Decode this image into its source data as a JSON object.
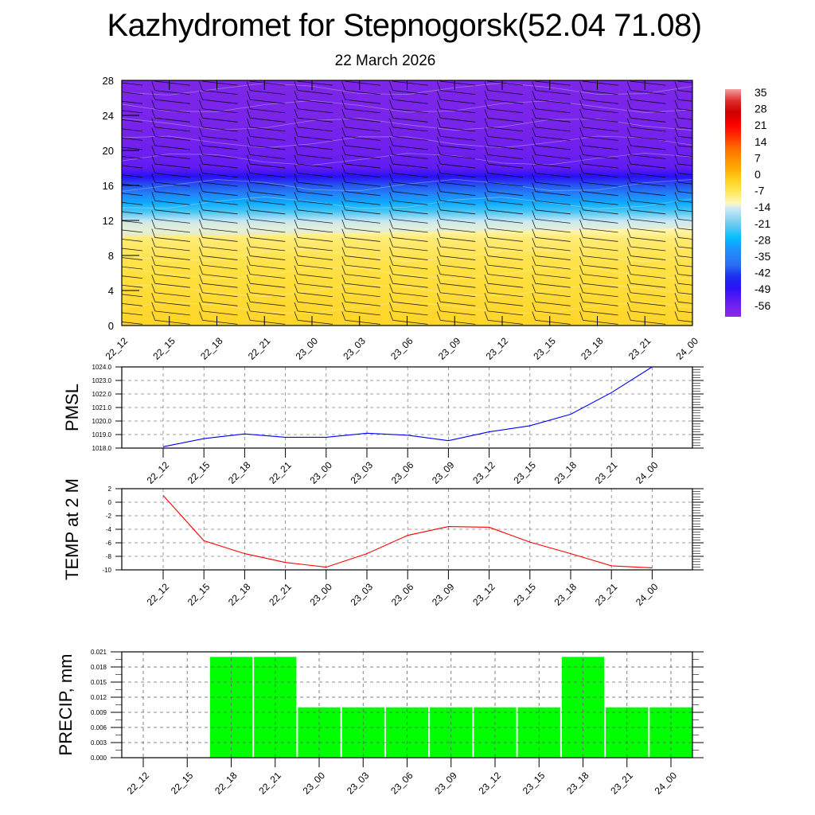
{
  "header": {
    "title": "Kazhydromet for Stepnogorsk(52.04 71.08)",
    "subtitle": "22 March 2026"
  },
  "time_labels": [
    "22_12",
    "22_15",
    "22_18",
    "22_21",
    "23_00",
    "23_03",
    "23_06",
    "23_09",
    "23_12",
    "23_15",
    "23_18",
    "23_21",
    "24_00"
  ],
  "colors": {
    "pmsl_line": "#0000ff",
    "temp_line": "#ff0000",
    "precip_bar": "#00ff00",
    "grid": "#808080"
  },
  "chart_data": [
    {
      "id": "upper-air-cross-section",
      "type": "heatmap",
      "title": "",
      "xlabel": "",
      "ylabel": "",
      "x": [
        "22_12",
        "22_15",
        "22_18",
        "22_21",
        "23_00",
        "23_03",
        "23_06",
        "23_09",
        "23_12",
        "23_15",
        "23_18",
        "23_21",
        "24_00"
      ],
      "ylim": [
        0,
        28
      ],
      "yticks": [
        "0",
        "4",
        "8",
        "12",
        "16",
        "20",
        "24",
        "28"
      ],
      "profile_levels": [
        0,
        2,
        4,
        6,
        8,
        10,
        11,
        12,
        13,
        14,
        15,
        16,
        17,
        18,
        20,
        22,
        24,
        26,
        28
      ],
      "profile_temps": [
        -3,
        -4,
        -5,
        -6,
        -7,
        -9,
        -12,
        -16,
        -24,
        -30,
        -36,
        -42,
        -50,
        -56,
        -58,
        -59,
        -60,
        -60,
        -61
      ],
      "colorbar": {
        "labels": [
          "35",
          "28",
          "21",
          "14",
          "7",
          "0",
          "-7",
          "-14",
          "-21",
          "-28",
          "-35",
          "-42",
          "-49",
          "-56"
        ],
        "range": [
          -63,
          38
        ]
      },
      "overlay": "wind barbs at each time column"
    },
    {
      "id": "pmsl",
      "type": "line",
      "ylabel": "PMSL",
      "ylim": [
        1018.0,
        1024.0
      ],
      "yticks": [
        "1018.0",
        "1019.0",
        "1020.0",
        "1021.0",
        "1022.0",
        "1023.0",
        "1024.0"
      ],
      "categories": [
        "22_12",
        "22_15",
        "22_18",
        "22_21",
        "23_00",
        "23_03",
        "23_06",
        "23_09",
        "23_12",
        "23_15",
        "23_18",
        "23_21",
        "24_00"
      ],
      "series": [
        {
          "name": "PMSL",
          "values": [
            1018.1,
            1018.7,
            1019.05,
            1018.8,
            1018.8,
            1019.1,
            1018.95,
            1018.55,
            1019.2,
            1019.65,
            1020.5,
            1022.1,
            1024.0
          ]
        }
      ],
      "grid": true
    },
    {
      "id": "temp2m",
      "type": "line",
      "ylabel": "TEMP at 2 M",
      "ylim": [
        -10,
        2
      ],
      "yticks": [
        "-10",
        "-8",
        "-6",
        "-4",
        "-2",
        "0",
        "2"
      ],
      "categories": [
        "22_12",
        "22_15",
        "22_18",
        "22_21",
        "23_00",
        "23_03",
        "23_06",
        "23_09",
        "23_12",
        "23_15",
        "23_18",
        "23_21",
        "24_00"
      ],
      "series": [
        {
          "name": "TEMP at 2 M",
          "values": [
            1.0,
            -5.7,
            -7.6,
            -8.9,
            -9.6,
            -7.6,
            -4.9,
            -3.6,
            -3.7,
            -5.9,
            -7.6,
            -9.4,
            -9.7
          ]
        }
      ],
      "grid": true
    },
    {
      "id": "precip",
      "type": "bar",
      "ylabel": "PRECIP, mm",
      "ylim": [
        0,
        0.021
      ],
      "yticks": [
        "0.000",
        "0.003",
        "0.006",
        "0.009",
        "0.012",
        "0.015",
        "0.018",
        "0.021"
      ],
      "categories": [
        "22_12",
        "22_15",
        "22_18",
        "22_21",
        "23_00",
        "23_03",
        "23_06",
        "23_09",
        "23_12",
        "23_15",
        "23_18",
        "23_21",
        "24_00"
      ],
      "values": [
        0,
        0,
        0.02,
        0.02,
        0.01,
        0.01,
        0.01,
        0.01,
        0.01,
        0.01,
        0.02,
        0.01,
        0.01
      ],
      "grid": true
    }
  ]
}
